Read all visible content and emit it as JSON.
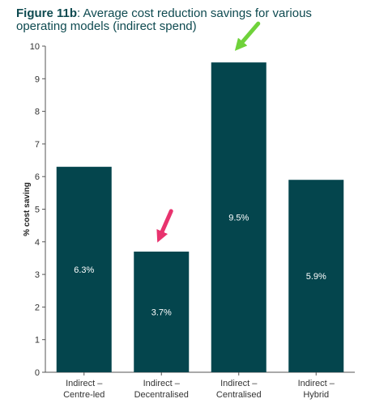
{
  "chart_data": {
    "type": "bar",
    "title_prefix": "Figure 11b",
    "title": ": Average cost reduction savings for various operating models (indirect spend)",
    "ylabel": "% cost saving",
    "xlabel": "",
    "ylim": [
      0,
      10
    ],
    "yticks": [
      0,
      1,
      2,
      3,
      4,
      5,
      6,
      7,
      8,
      9,
      10
    ],
    "categories": [
      [
        "Indirect –",
        "Centre-led"
      ],
      [
        "Indirect –",
        "Decentralised"
      ],
      [
        "Indirect –",
        "Centralised"
      ],
      [
        "Indirect –",
        "Hybrid"
      ]
    ],
    "values": [
      6.3,
      3.7,
      9.5,
      5.9
    ],
    "value_labels": [
      "6.3%",
      "3.7%",
      "9.5%",
      "5.9%"
    ],
    "bar_color": "#04454d",
    "grid": false,
    "annotations": [
      {
        "type": "arrow",
        "color": "#e8336e",
        "points_to": "Indirect – Decentralised"
      },
      {
        "type": "arrow",
        "color": "#6fd23a",
        "points_to": "Indirect – Centralised"
      }
    ]
  }
}
